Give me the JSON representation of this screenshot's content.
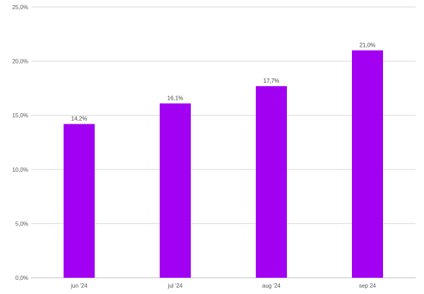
{
  "chart_data": {
    "type": "bar",
    "categories": [
      "jun '24",
      "jul '24",
      "aug '24",
      "sep 24"
    ],
    "values": [
      14.2,
      16.1,
      17.7,
      21.0
    ],
    "data_labels": [
      "14,2%",
      "16,1%",
      "17,7%",
      "21,0%"
    ],
    "title": "",
    "xlabel": "",
    "ylabel": "",
    "ylim": [
      0,
      25
    ],
    "yticks": [
      0,
      5,
      10,
      15,
      20,
      25
    ],
    "ytick_labels": [
      "0,0%",
      "5,0%",
      "10,0%",
      "15,0%",
      "20,0%",
      "25,0%"
    ],
    "grid": true,
    "legend": "none",
    "colors": {
      "bar": "#a100f2"
    }
  }
}
